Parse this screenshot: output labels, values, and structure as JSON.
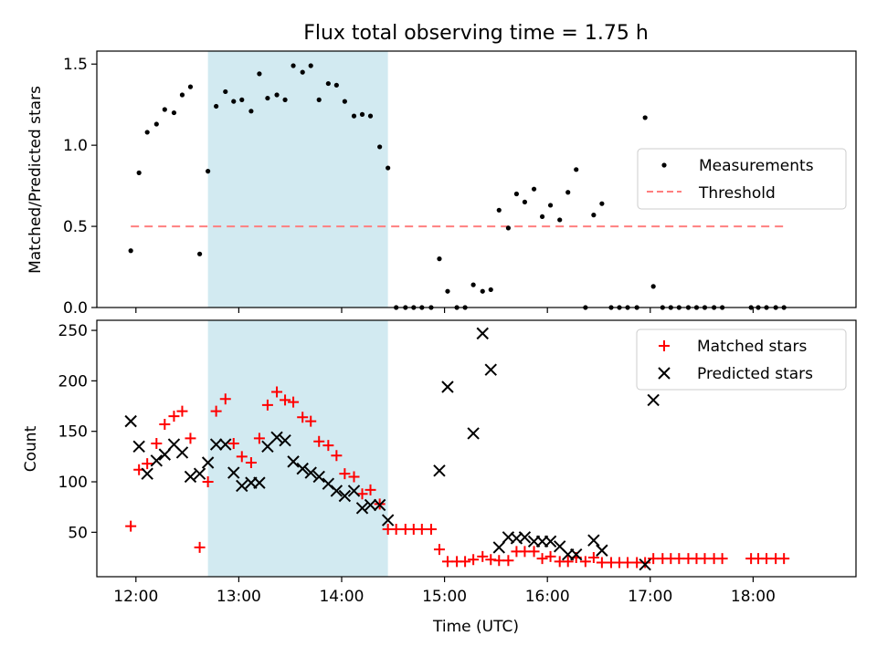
{
  "title": "Flux total observing time = 1.75 h",
  "chart_data": [
    {
      "type": "scatter",
      "ylabel": "Matched/Predicted stars",
      "xlim": [
        11.62,
        19.0
      ],
      "ylim": [
        0.0,
        1.58
      ],
      "yticks": [
        0.0,
        0.5,
        1.0,
        1.5
      ],
      "ytick_labels": [
        "0.0",
        "0.5",
        "1.0",
        "1.5"
      ],
      "shaded_region": {
        "x": [
          12.7,
          14.45
        ],
        "color": "#add8e6"
      },
      "legend": {
        "position": "center-right",
        "entries": [
          "Measurements",
          "Threshold"
        ]
      },
      "threshold": {
        "x": [
          11.95,
          18.3
        ],
        "y": 0.5,
        "color": "#ff7f7f",
        "style": "dashed"
      },
      "series": [
        {
          "name": "Measurements",
          "marker": "dot",
          "color": "#000000",
          "x": [
            11.95,
            12.03,
            12.11,
            12.2,
            12.28,
            12.37,
            12.45,
            12.53,
            12.62,
            12.7,
            12.78,
            12.87,
            12.95,
            13.03,
            13.12,
            13.2,
            13.28,
            13.37,
            13.45,
            13.53,
            13.62,
            13.7,
            13.78,
            13.87,
            13.95,
            14.03,
            14.12,
            14.2,
            14.28,
            14.37,
            14.45,
            14.53,
            14.62,
            14.7,
            14.78,
            14.87,
            14.95,
            15.03,
            15.12,
            15.2,
            15.28,
            15.37,
            15.45,
            15.53,
            15.62,
            15.7,
            15.78,
            15.87,
            15.95,
            16.03,
            16.12,
            16.2,
            16.28,
            16.37,
            16.45,
            16.53,
            16.62,
            16.7,
            16.78,
            16.87,
            16.95,
            17.03,
            17.12,
            17.2,
            17.28,
            17.37,
            17.45,
            17.53,
            17.62,
            17.7,
            17.98,
            18.05,
            18.13,
            18.22,
            18.3
          ],
          "y": [
            0.35,
            0.83,
            1.08,
            1.13,
            1.22,
            1.2,
            1.31,
            1.36,
            0.33,
            0.84,
            1.24,
            1.33,
            1.27,
            1.28,
            1.21,
            1.44,
            1.29,
            1.31,
            1.28,
            1.49,
            1.45,
            1.49,
            1.28,
            1.38,
            1.37,
            1.27,
            1.18,
            1.19,
            1.18,
            0.99,
            0.86,
            0.0,
            0.0,
            0.0,
            0.0,
            0.0,
            0.3,
            0.1,
            0.0,
            0.0,
            0.14,
            0.1,
            0.11,
            0.6,
            0.49,
            0.7,
            0.65,
            0.73,
            0.56,
            0.63,
            0.54,
            0.71,
            0.85,
            0.0,
            0.57,
            0.64,
            0.0,
            0.0,
            0.0,
            0.0,
            1.17,
            0.13,
            0.0,
            0.0,
            0.0,
            0.0,
            0.0,
            0.0,
            0.0,
            0.0,
            0.0,
            0.0,
            0.0,
            0.0,
            0.0
          ]
        }
      ]
    },
    {
      "type": "scatter",
      "xlabel": "Time (UTC)",
      "ylabel": "Count",
      "xlim": [
        11.62,
        19.0
      ],
      "ylim": [
        6.0,
        260.0
      ],
      "xticks": [
        12,
        13,
        14,
        15,
        16,
        17,
        18
      ],
      "xtick_labels": [
        "12:00",
        "13:00",
        "14:00",
        "15:00",
        "16:00",
        "17:00",
        "18:00"
      ],
      "yticks": [
        50,
        100,
        150,
        200,
        250
      ],
      "ytick_labels": [
        "50",
        "100",
        "150",
        "200",
        "250"
      ],
      "shaded_region": {
        "x": [
          12.7,
          14.45
        ],
        "color": "#add8e6"
      },
      "legend": {
        "position": "top-right",
        "entries": [
          "Matched stars",
          "Predicted stars"
        ]
      },
      "series": [
        {
          "name": "Matched stars",
          "marker": "plus",
          "color": "#ff0000",
          "x": [
            11.95,
            12.03,
            12.11,
            12.2,
            12.28,
            12.37,
            12.45,
            12.53,
            12.62,
            12.7,
            12.78,
            12.87,
            12.95,
            13.03,
            13.12,
            13.2,
            13.28,
            13.37,
            13.45,
            13.53,
            13.62,
            13.7,
            13.78,
            13.87,
            13.95,
            14.03,
            14.12,
            14.2,
            14.28,
            14.37,
            14.45,
            14.53,
            14.62,
            14.7,
            14.78,
            14.87,
            14.95,
            15.03,
            15.12,
            15.2,
            15.28,
            15.37,
            15.45,
            15.53,
            15.62,
            15.7,
            15.78,
            15.87,
            15.95,
            16.03,
            16.12,
            16.2,
            16.28,
            16.37,
            16.45,
            16.53,
            16.62,
            16.7,
            16.78,
            16.87,
            16.95,
            17.03,
            17.12,
            17.2,
            17.28,
            17.37,
            17.45,
            17.53,
            17.62,
            17.7,
            17.98,
            18.05,
            18.13,
            18.22,
            18.3
          ],
          "y": [
            56,
            112,
            118,
            138,
            157,
            165,
            170,
            143,
            35,
            100,
            170,
            182,
            138,
            125,
            119,
            143,
            176,
            189,
            181,
            179,
            164,
            160,
            140,
            136,
            126,
            108,
            105,
            88,
            92,
            78,
            53,
            53,
            53,
            53,
            53,
            53,
            33,
            21,
            21,
            21,
            23,
            26,
            23,
            22,
            22,
            31,
            31,
            31,
            24,
            26,
            21,
            21,
            25,
            21,
            25,
            20,
            20,
            20,
            20,
            20,
            20,
            24,
            24,
            24,
            24,
            24,
            24,
            24,
            24,
            24,
            24,
            24,
            24,
            24,
            24
          ]
        },
        {
          "name": "Predicted stars",
          "marker": "x",
          "color": "#000000",
          "x": [
            11.95,
            12.03,
            12.11,
            12.2,
            12.28,
            12.37,
            12.45,
            12.53,
            12.62,
            12.7,
            12.78,
            12.87,
            12.95,
            13.03,
            13.12,
            13.2,
            13.28,
            13.37,
            13.45,
            13.53,
            13.62,
            13.7,
            13.78,
            13.87,
            13.95,
            14.03,
            14.12,
            14.2,
            14.28,
            14.37,
            14.45,
            14.95,
            15.03,
            15.28,
            15.37,
            15.45,
            15.53,
            15.62,
            15.7,
            15.78,
            15.87,
            15.95,
            16.03,
            16.12,
            16.2,
            16.28,
            16.45,
            16.53,
            16.95,
            17.03
          ],
          "y": [
            160,
            135,
            108,
            121,
            127,
            137,
            129,
            105,
            108,
            119,
            137,
            137,
            109,
            96,
            99,
            99,
            135,
            144,
            141,
            120,
            113,
            109,
            105,
            98,
            91,
            86,
            91,
            74,
            77,
            77,
            62,
            111,
            194,
            148,
            247,
            211,
            35,
            45,
            44,
            45,
            41,
            41,
            41,
            36,
            28,
            28,
            42,
            32,
            18,
            181
          ]
        }
      ]
    }
  ]
}
